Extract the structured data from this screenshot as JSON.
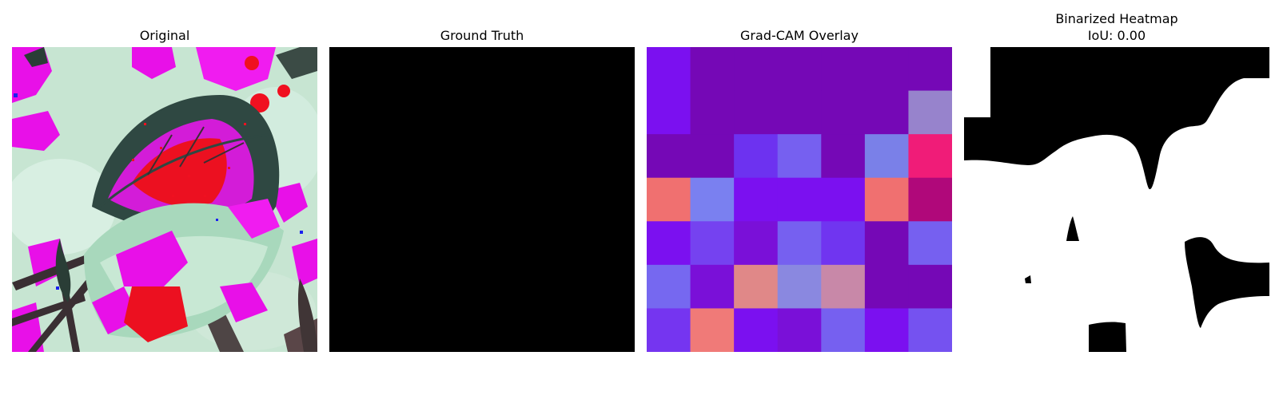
{
  "panels": [
    {
      "title": "Original"
    },
    {
      "title": "Ground Truth"
    },
    {
      "title": "Grad-CAM Overlay"
    },
    {
      "title": "Binarized Heatmap",
      "subtitle": "IoU: 0.00"
    }
  ],
  "gradcam_grid": [
    [
      "#7b10f0",
      "#7508b6",
      "#7508b6",
      "#7508b6",
      "#7508b6",
      "#7508b6",
      "#7508b6"
    ],
    [
      "#7b10f0",
      "#7508b6",
      "#7508b6",
      "#7508b6",
      "#7508b6",
      "#7508b6",
      "#9783cc"
    ],
    [
      "#7508b6",
      "#7508b6",
      "#6d32f0",
      "#7660f0",
      "#7508b6",
      "#7a80e8",
      "#f01c78"
    ],
    [
      "#f07070",
      "#7a80f0",
      "#7b10f0",
      "#7b10f0",
      "#7b10f0",
      "#f07070",
      "#b0087a"
    ],
    [
      "#7b10f0",
      "#7542f0",
      "#7a10d8",
      "#7660f0",
      "#7035f0",
      "#7508b6",
      "#7660f0"
    ],
    [
      "#7668f0",
      "#7a10d8",
      "#e08888",
      "#8a88e0",
      "#c888a8",
      "#7508b6",
      "#7508b6"
    ],
    [
      "#7535f0",
      "#f07a78",
      "#7b10f0",
      "#7a10d8",
      "#7660f0",
      "#7b10f0",
      "#7552f0"
    ]
  ],
  "colors": {
    "ground_truth": "#000000",
    "binary_fg": "#ffffff",
    "binary_bg": "#000000"
  }
}
